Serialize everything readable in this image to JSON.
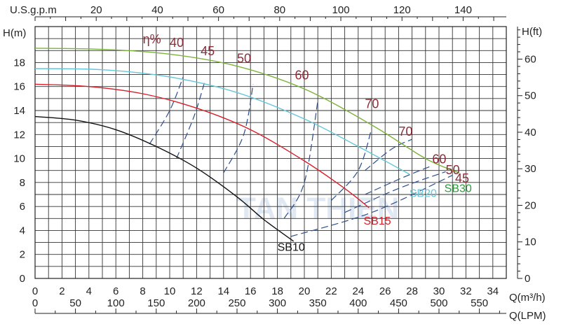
{
  "chart_data": {
    "type": "line",
    "title": "",
    "watermark": "TAN THIEN",
    "x_axis_primary": {
      "label": "Q(m³/h)",
      "range": [
        0,
        35
      ],
      "ticks": [
        0,
        2,
        4,
        6,
        8,
        10,
        12,
        14,
        16,
        18,
        20,
        22,
        24,
        26,
        28,
        30,
        32,
        34
      ]
    },
    "x_axis_secondary": {
      "label": "Q(LPM)",
      "ticks": [
        0,
        50,
        100,
        150,
        200,
        250,
        300,
        350,
        400,
        450,
        500,
        550
      ]
    },
    "x_axis_top": {
      "label": "U.S.g.p.m",
      "ticks": [
        20,
        40,
        60,
        80,
        100,
        120,
        140
      ]
    },
    "y_axis_left": {
      "label": "H(m)",
      "range": [
        0,
        21
      ],
      "ticks": [
        0,
        2,
        4,
        6,
        8,
        10,
        12,
        14,
        16,
        18
      ]
    },
    "y_axis_right": {
      "label": "H(ft)",
      "ticks": [
        0,
        10,
        20,
        30,
        40,
        50,
        60
      ]
    },
    "grid": true,
    "efficiency_label": "η%",
    "series": [
      {
        "name": "SB10",
        "color": "#111111",
        "x": [
          0,
          3,
          6,
          9,
          12,
          15,
          17,
          19.2
        ],
        "y": [
          13.5,
          13.2,
          12.4,
          11.0,
          9.2,
          6.8,
          4.9,
          3.1
        ]
      },
      {
        "name": "SB15",
        "color": "#d6202a",
        "x": [
          0,
          4,
          8,
          12,
          16,
          20,
          23,
          24.8
        ],
        "y": [
          16.2,
          16.0,
          15.4,
          14.2,
          12.4,
          9.8,
          7.5,
          5.9
        ]
      },
      {
        "name": "SB20",
        "color": "#66c7d8",
        "x": [
          0,
          5,
          10,
          15,
          20,
          24,
          27.8
        ],
        "y": [
          17.5,
          17.4,
          16.8,
          15.5,
          13.3,
          11.0,
          8.7
        ]
      },
      {
        "name": "SB30",
        "color": "#7cb33a",
        "x": [
          0,
          5,
          10,
          15,
          20,
          25,
          29,
          31.5
        ],
        "y": [
          19.2,
          19.1,
          18.7,
          17.7,
          15.8,
          12.8,
          10.0,
          8.8
        ]
      }
    ],
    "efficiency_contours": [
      {
        "label": "40",
        "x": [
          8.5,
          10.0,
          11.0
        ],
        "y": [
          11.2,
          14.0,
          16.8
        ]
      },
      {
        "label": "45",
        "x": [
          10.5,
          11.8,
          12.6
        ],
        "y": [
          10.0,
          13.5,
          16.4
        ]
      },
      {
        "label": "50",
        "x": [
          14.0,
          15.5,
          16.2
        ],
        "y": [
          8.8,
          12.0,
          16.2
        ]
      },
      {
        "label": "60",
        "x": [
          18.5,
          20.0,
          21.0
        ],
        "y": [
          5.0,
          8.0,
          14.8
        ]
      },
      {
        "label": "70",
        "x": [
          22.0,
          24.0,
          25.0
        ],
        "y": [
          6.5,
          9.0,
          12.5
        ]
      },
      {
        "label": "70",
        "x": [
          24.5,
          26.5,
          28.0
        ],
        "y": [
          9.0,
          10.8,
          11.6
        ]
      },
      {
        "label": "60",
        "x": [
          24.5,
          27.5,
          29.5
        ],
        "y": [
          7.0,
          8.5,
          9.4
        ]
      },
      {
        "label": "50",
        "x": [
          23.0,
          27.0,
          30.5
        ],
        "y": [
          5.5,
          7.5,
          8.9
        ]
      },
      {
        "label": "45",
        "x": [
          19.0,
          25.0,
          31.0
        ],
        "y": [
          3.5,
          5.5,
          8.6
        ]
      }
    ],
    "efficiency_labels": [
      {
        "text": "η%",
        "x": 8.0,
        "y": 19.6
      },
      {
        "text": "40",
        "x": 10.0,
        "y": 19.3
      },
      {
        "text": "45",
        "x": 12.3,
        "y": 18.6
      },
      {
        "text": "50",
        "x": 15.0,
        "y": 18.0
      },
      {
        "text": "60",
        "x": 19.3,
        "y": 16.6
      },
      {
        "text": "70",
        "x": 24.5,
        "y": 14.2
      },
      {
        "text": "70",
        "x": 27.0,
        "y": 11.9
      },
      {
        "text": "60",
        "x": 29.5,
        "y": 9.6
      },
      {
        "text": "50",
        "x": 30.5,
        "y": 8.7
      },
      {
        "text": "45",
        "x": 31.2,
        "y": 8.0
      }
    ],
    "series_labels": [
      {
        "text": "SB10",
        "x": 18.0,
        "y": 2.3,
        "color": "#111111"
      },
      {
        "text": "SB15",
        "x": 24.4,
        "y": 4.5,
        "color": "#d6202a"
      },
      {
        "text": "SB20",
        "x": 27.8,
        "y": 6.8,
        "color": "#66c7d8"
      },
      {
        "text": "SB30",
        "x": 30.4,
        "y": 7.2,
        "color": "#2c9a3a"
      }
    ]
  }
}
